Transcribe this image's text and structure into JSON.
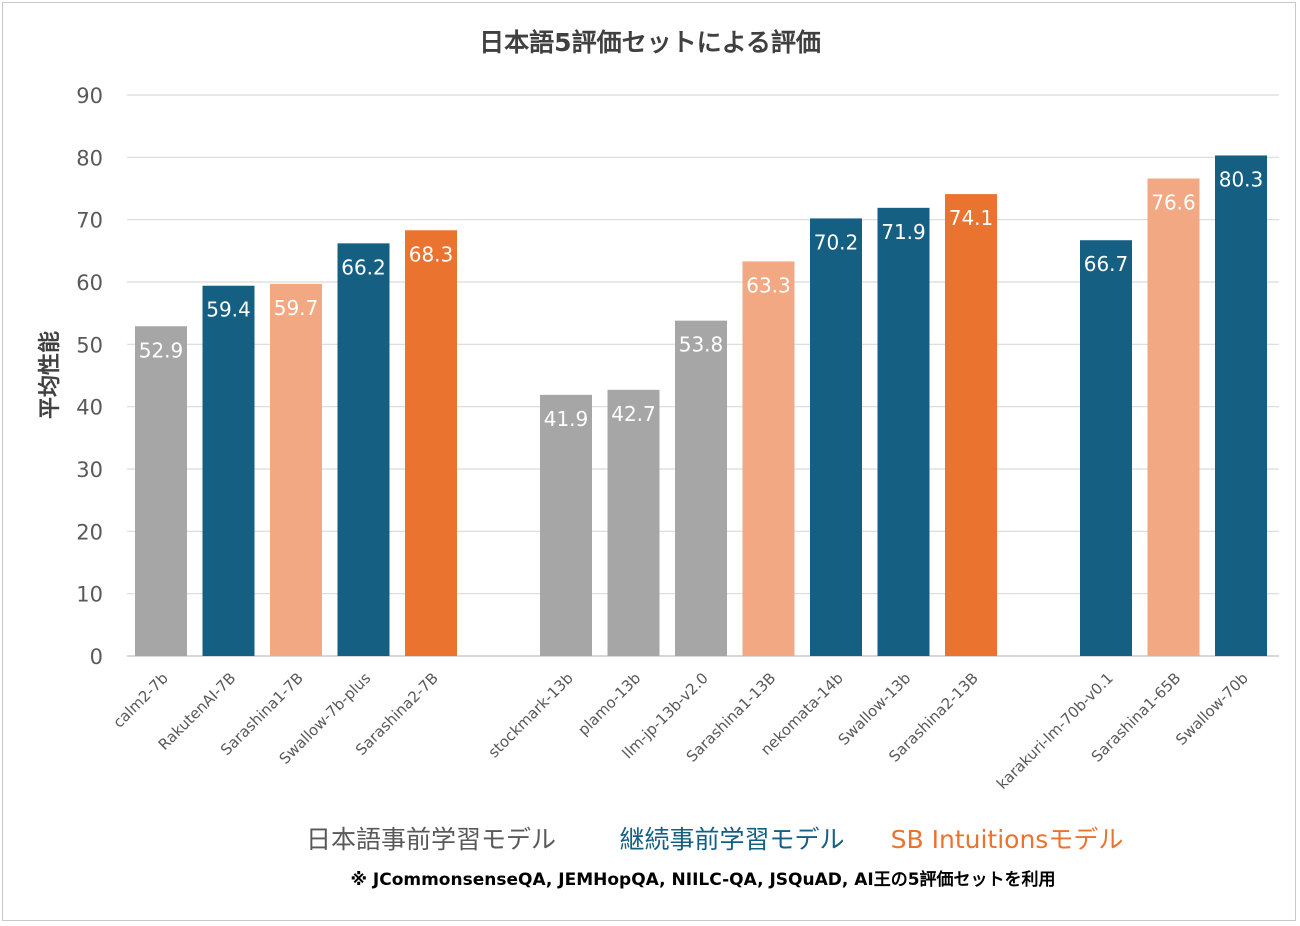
{
  "chart_data": {
    "type": "bar",
    "title": "日本語5評価セットによる評価",
    "ylabel": "平均性能",
    "xlabel": "",
    "ylim": [
      0,
      90
    ],
    "yticks": [
      0,
      10,
      20,
      30,
      40,
      50,
      60,
      70,
      80,
      90
    ],
    "grid": true,
    "categories": [
      "calm2-7b",
      "RakutenAI-7B",
      "Sarashina1-7B",
      "Swallow-7b-plus",
      "Sarashina2-7B",
      "stockmark-13b",
      "plamo-13b",
      "llm-jp-13b-v2.0",
      "Sarashina1-13B",
      "nekomata-14b",
      "Swallow-13b",
      "Sarashina2-13B",
      "karakuri-lm-70b-v0.1",
      "Sarashina1-65B",
      "Swallow-70b"
    ],
    "values": [
      52.9,
      59.4,
      59.7,
      66.2,
      68.3,
      41.9,
      42.7,
      53.8,
      63.3,
      70.2,
      71.9,
      74.1,
      66.7,
      76.6,
      80.3
    ],
    "value_labels": [
      "52.9",
      "59.4",
      "59.7",
      "66.2",
      "68.3",
      "41.9",
      "42.7",
      "53.8",
      "63.3",
      "70.2",
      "71.9",
      "74.1",
      "66.7",
      "76.6",
      "80.3"
    ],
    "groups": [
      {
        "members": [
          0,
          1,
          2,
          3,
          4
        ]
      },
      {
        "members": [
          5,
          6,
          7,
          8,
          9,
          10,
          11
        ]
      },
      {
        "members": [
          12,
          13,
          14
        ]
      }
    ],
    "bar_kinds": [
      "japanese",
      "continual",
      "sbi-v1",
      "continual",
      "sbi-v2",
      "japanese",
      "japanese",
      "japanese",
      "sbi-v1",
      "continual",
      "continual",
      "sbi-v2",
      "continual",
      "sbi-v1",
      "continual"
    ],
    "legend": [
      {
        "label": "日本語事前学習モデル",
        "kind": "japanese"
      },
      {
        "label": "継続事前学習モデル",
        "kind": "continual"
      },
      {
        "label": "SB Intuitionsモデル",
        "kind": "sbi-v2"
      }
    ],
    "legend_placement": "bottom",
    "note": "※ JCommonsenseQA, JEMHopQA, NIILC-QA, JSQuAD, AI王の5評価セットを利用"
  },
  "colors": {
    "japanese": "#a6a6a6",
    "continual": "#155f83",
    "sbi-v1": "#f2a882",
    "sbi-v2": "#ea7330",
    "legend_japanese": "#595959",
    "legend_continual": "#155f83",
    "legend_sbi": "#ea7330",
    "grid": "#d9d9d9",
    "axis_text": "#595959",
    "title_text": "#404040",
    "bar_label": "#ffffff"
  }
}
